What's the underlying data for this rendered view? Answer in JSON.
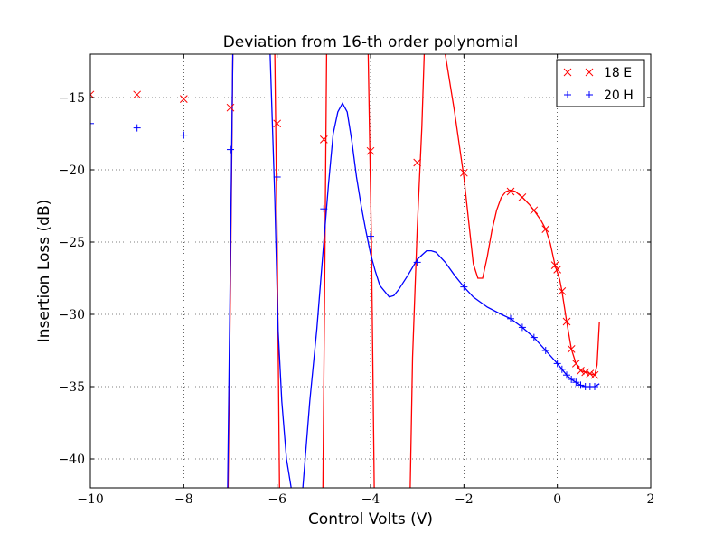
{
  "chart_data": {
    "type": "line",
    "title": "Deviation from 16-th order polynomial",
    "xlabel": "Control Volts (V)",
    "ylabel": "Insertion Loss (dB)",
    "xlim": [
      -10,
      2
    ],
    "ylim": [
      -42,
      -12
    ],
    "xticks": [
      -10,
      -8,
      -6,
      -4,
      -2,
      0,
      2
    ],
    "yticks": [
      -40,
      -35,
      -30,
      -25,
      -20,
      -15
    ],
    "xtick_labels": [
      "−10",
      "−8",
      "−6",
      "−4",
      "−2",
      "0",
      "2"
    ],
    "ytick_labels": [
      "−40",
      "−35",
      "−30",
      "−25",
      "−20",
      "−15"
    ],
    "grid": true,
    "legend_position": "top-right",
    "series": [
      {
        "name": "18 E",
        "color": "#ff0000",
        "marker": "x",
        "markers": [
          [
            -10,
            -14.8
          ],
          [
            -9,
            -14.8
          ],
          [
            -8,
            -15.1
          ],
          [
            -7,
            -15.7
          ],
          [
            -6,
            -16.8
          ],
          [
            -5,
            -17.9
          ],
          [
            -4,
            -18.7
          ],
          [
            -3,
            -19.5
          ],
          [
            -2,
            -20.2
          ],
          [
            -1,
            -21.5
          ],
          [
            -0.75,
            -21.9
          ],
          [
            -0.5,
            -22.8
          ],
          [
            -0.25,
            -24.1
          ],
          [
            -0.05,
            -26.6
          ],
          [
            0,
            -26.9
          ],
          [
            0.1,
            -28.4
          ],
          [
            0.2,
            -30.5
          ],
          [
            0.3,
            -32.4
          ],
          [
            0.4,
            -33.4
          ],
          [
            0.5,
            -33.9
          ],
          [
            0.6,
            -34.0
          ],
          [
            0.7,
            -34.1
          ],
          [
            0.8,
            -34.2
          ]
        ],
        "curves": [
          [
            [
              -7.05,
              -42
            ],
            [
              -7.0,
              -28
            ],
            [
              -6.95,
              -12
            ]
          ],
          [
            [
              -6.05,
              -12
            ],
            [
              -6.0,
              -25
            ],
            [
              -5.95,
              -42
            ]
          ],
          [
            [
              -5.02,
              -42
            ],
            [
              -4.98,
              -27
            ],
            [
              -4.94,
              -12
            ]
          ],
          [
            [
              -4.05,
              -12
            ],
            [
              -3.98,
              -25
            ],
            [
              -3.92,
              -42
            ]
          ],
          [
            [
              -3.15,
              -42
            ],
            [
              -3.1,
              -33
            ],
            [
              -3.0,
              -24
            ],
            [
              -2.9,
              -17
            ],
            [
              -2.85,
              -12
            ]
          ],
          [
            [
              -2.4,
              -12
            ],
            [
              -2.2,
              -16
            ],
            [
              -2.0,
              -20.5
            ],
            [
              -1.9,
              -23.5
            ],
            [
              -1.8,
              -26.5
            ],
            [
              -1.7,
              -27.5
            ],
            [
              -1.6,
              -27.5
            ],
            [
              -1.5,
              -26
            ],
            [
              -1.4,
              -24.2
            ],
            [
              -1.3,
              -22.8
            ],
            [
              -1.2,
              -21.9
            ],
            [
              -1.1,
              -21.5
            ],
            [
              -1.0,
              -21.4
            ],
            [
              -0.9,
              -21.5
            ],
            [
              -0.75,
              -21.9
            ],
            [
              -0.6,
              -22.4
            ],
            [
              -0.5,
              -22.8
            ],
            [
              -0.35,
              -23.5
            ],
            [
              -0.25,
              -24.1
            ],
            [
              -0.15,
              -25.1
            ],
            [
              -0.05,
              -26.6
            ],
            [
              0.05,
              -27.6
            ],
            [
              0.1,
              -28.4
            ],
            [
              0.2,
              -30.5
            ],
            [
              0.3,
              -32.4
            ],
            [
              0.4,
              -33.4
            ],
            [
              0.5,
              -33.9
            ],
            [
              0.6,
              -34.0
            ],
            [
              0.7,
              -34.1
            ],
            [
              0.8,
              -34.2
            ],
            [
              0.85,
              -33.5
            ],
            [
              0.9,
              -30.5
            ]
          ]
        ]
      },
      {
        "name": "20 H",
        "color": "#0000ff",
        "marker": "+",
        "markers": [
          [
            -10,
            -16.8
          ],
          [
            -9,
            -17.1
          ],
          [
            -8,
            -17.6
          ],
          [
            -7,
            -18.6
          ],
          [
            -6,
            -20.5
          ],
          [
            -5,
            -22.7
          ],
          [
            -4,
            -24.6
          ],
          [
            -3,
            -26.4
          ],
          [
            -2,
            -28.1
          ],
          [
            -1,
            -30.3
          ],
          [
            -0.75,
            -30.9
          ],
          [
            -0.5,
            -31.6
          ],
          [
            -0.25,
            -32.5
          ],
          [
            0,
            -33.4
          ],
          [
            0.1,
            -33.8
          ],
          [
            0.2,
            -34.2
          ],
          [
            0.3,
            -34.5
          ],
          [
            0.4,
            -34.7
          ],
          [
            0.5,
            -34.9
          ],
          [
            0.6,
            -35.0
          ],
          [
            0.7,
            -35.0
          ],
          [
            0.8,
            -35.0
          ]
        ],
        "curves": [
          [
            [
              -7.06,
              -42
            ],
            [
              -7.0,
              -26
            ],
            [
              -6.95,
              -12
            ]
          ],
          [
            [
              -6.15,
              -12
            ],
            [
              -6.05,
              -22
            ],
            [
              -5.98,
              -31
            ],
            [
              -5.9,
              -36
            ],
            [
              -5.8,
              -40
            ],
            [
              -5.7,
              -42
            ]
          ],
          [
            [
              -5.45,
              -42
            ],
            [
              -5.3,
              -36
            ],
            [
              -5.15,
              -31
            ],
            [
              -5.0,
              -25
            ],
            [
              -4.9,
              -21
            ],
            [
              -4.8,
              -17.5
            ],
            [
              -4.7,
              -16
            ],
            [
              -4.6,
              -15.4
            ],
            [
              -4.5,
              -16
            ],
            [
              -4.4,
              -18
            ],
            [
              -4.3,
              -20.5
            ],
            [
              -4.2,
              -22.5
            ],
            [
              -4.1,
              -24.2
            ],
            [
              -4.0,
              -25.8
            ],
            [
              -3.9,
              -27
            ],
            [
              -3.8,
              -28
            ],
            [
              -3.6,
              -28.8
            ],
            [
              -3.5,
              -28.7
            ],
            [
              -3.4,
              -28.3
            ],
            [
              -3.2,
              -27.3
            ],
            [
              -3.0,
              -26.2
            ],
            [
              -2.9,
              -25.9
            ],
            [
              -2.8,
              -25.6
            ],
            [
              -2.7,
              -25.6
            ],
            [
              -2.6,
              -25.7
            ],
            [
              -2.4,
              -26.4
            ],
            [
              -2.2,
              -27.3
            ],
            [
              -2.0,
              -28.1
            ],
            [
              -1.8,
              -28.8
            ],
            [
              -1.5,
              -29.5
            ],
            [
              -1.2,
              -30.0
            ],
            [
              -1.0,
              -30.3
            ],
            [
              -0.75,
              -30.9
            ],
            [
              -0.5,
              -31.6
            ],
            [
              -0.25,
              -32.5
            ],
            [
              0,
              -33.4
            ],
            [
              0.1,
              -33.8
            ],
            [
              0.2,
              -34.2
            ],
            [
              0.3,
              -34.5
            ],
            [
              0.4,
              -34.7
            ],
            [
              0.5,
              -34.9
            ],
            [
              0.6,
              -35.0
            ],
            [
              0.7,
              -35.0
            ],
            [
              0.8,
              -35.0
            ],
            [
              0.9,
              -34.8
            ]
          ]
        ]
      }
    ]
  }
}
